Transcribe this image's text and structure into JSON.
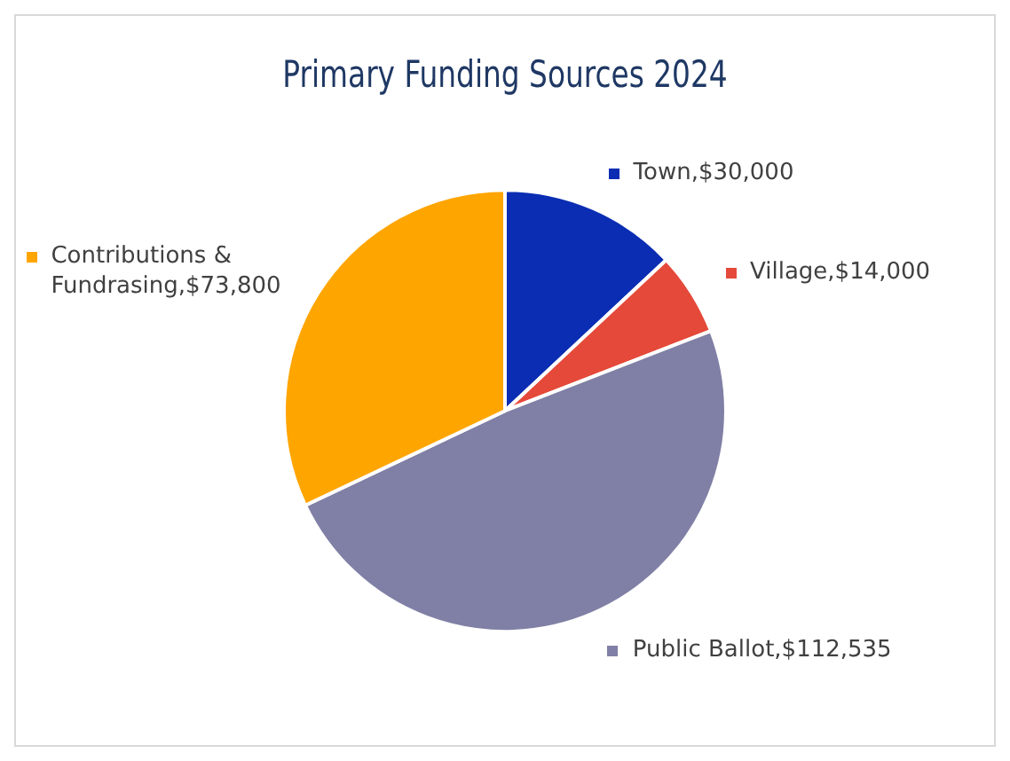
{
  "chart_data": {
    "type": "pie",
    "title": "Primary Funding Sources 2024",
    "categories": [
      "Town",
      "Village",
      "Public Ballot",
      "Contributions & Fundrasing"
    ],
    "values": [
      30000,
      14000,
      112535,
      73800
    ],
    "colors": [
      "#0a2db3",
      "#e5493a",
      "#8080a6",
      "#ffa500"
    ],
    "value_labels": [
      "$30,000",
      "$14,000",
      "$112,535",
      "$73,800"
    ],
    "legend": "top left"
  }
}
